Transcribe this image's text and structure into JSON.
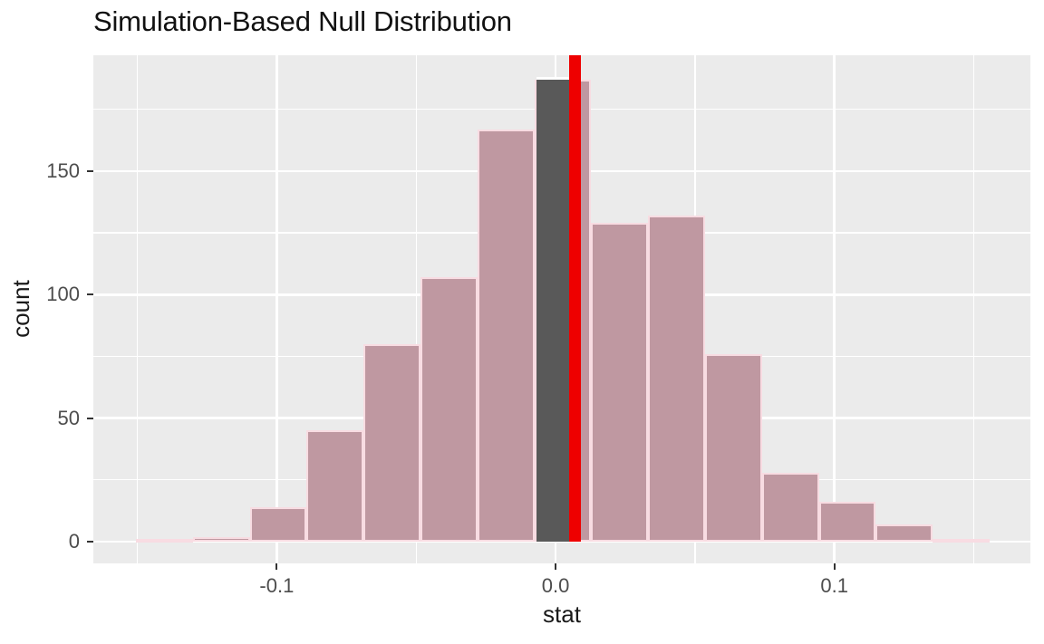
{
  "title": "Simulation-Based Null Distribution",
  "chart_data": {
    "type": "bar",
    "subtype": "histogram",
    "title": "Simulation-Based Null Distribution",
    "xlabel": "stat",
    "ylabel": "count",
    "bin_start": -0.1505,
    "bin_width": 0.02041,
    "counts": [
      1,
      2,
      14,
      45,
      80,
      107,
      167,
      187,
      129,
      132,
      76,
      28,
      16,
      7,
      1
    ],
    "highlight": {
      "bin_index": 7,
      "count": 187,
      "x0": -0.0068,
      "x1": 0.0068,
      "fill": "#595959",
      "border_top": "#ffffff"
    },
    "observed_stat": 0.007,
    "observed_line_color": "#ee0000",
    "x_ticks": [
      -0.1,
      0.0,
      0.1
    ],
    "x_tick_labels": [
      "-0.1",
      "0.0",
      "0.1"
    ],
    "x_minor_gridlines": [
      -0.15,
      -0.05,
      0.05,
      0.15
    ],
    "y_ticks": [
      0,
      50,
      100,
      150
    ],
    "y_tick_labels": [
      "0",
      "50",
      "100",
      "150"
    ],
    "y_minor_gridlines": [
      25,
      75,
      125,
      175
    ],
    "xlim": [
      -0.1658,
      0.1703
    ],
    "ylim": [
      -8.8,
      196.9
    ],
    "grid": "on",
    "legend": "none",
    "colors": {
      "panel_bg": "#ebebeb",
      "gridline": "#ffffff",
      "bar_fill": "#bf98a1",
      "bar_border": "#f8dce2",
      "tick_text": "#4d4d4d",
      "tick_mark": "#333333",
      "title_text": "#111111"
    }
  }
}
